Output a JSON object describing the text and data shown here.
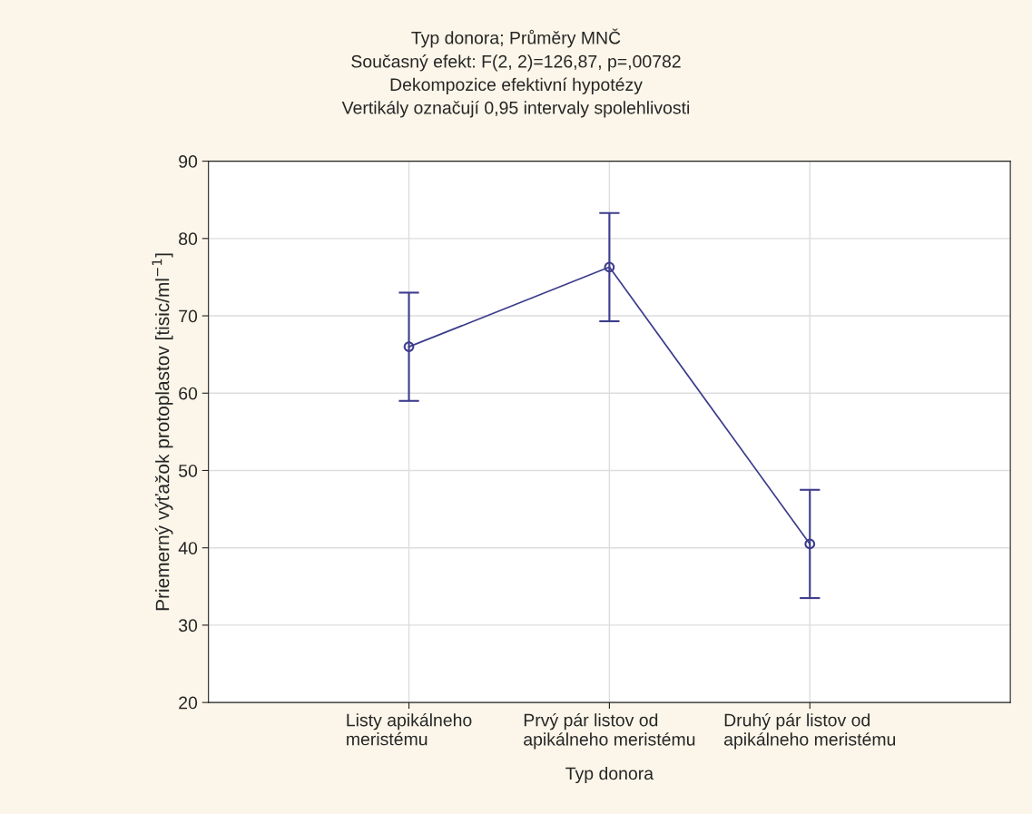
{
  "chart_data": {
    "type": "line",
    "title": "Typ donora; Průměry MNČ",
    "subtitle": "Současný efekt: F(2, 2)=126,87, p=,00782\nDekompozice efektivní hypotézy\nVertikály označují 0,95 intervaly spolehlivosti",
    "xlabel": "Typ donora",
    "ylabel": "Priemerný výťažok protoplastov [tisic/ml$^{−1}$]",
    "categories": [
      "Listy apikálneho\nmeristému",
      "Prvý pár listov od\napikálneho meristému",
      "Druhý pár listov od\napikálneho meristému"
    ],
    "series": [
      {
        "color": "#3c3c8c",
        "values": [
          66,
          76.3,
          40.5
        ],
        "errors": [
          7,
          7,
          7
        ]
      }
    ],
    "ylim": [
      20,
      90
    ],
    "yticks": [
      20,
      30,
      40,
      50,
      60,
      70,
      80,
      90
    ],
    "grid": true,
    "marker": "circle",
    "line_style": "solid",
    "legend": false
  }
}
